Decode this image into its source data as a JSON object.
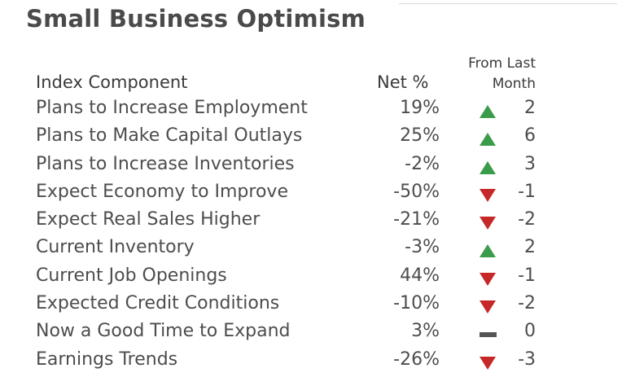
{
  "title": "Small Business Optimism",
  "headers": {
    "component": "Index Component",
    "net": "Net %",
    "from_line1": "From Last",
    "from_line2": "Month"
  },
  "colors": {
    "up": "#3a9b4a",
    "down": "#c62828",
    "flat": "#555555"
  },
  "rows": [
    {
      "label": "Plans to Increase Employment",
      "net": "19%",
      "direction": "up",
      "change": "2"
    },
    {
      "label": "Plans to Make Capital Outlays",
      "net": "25%",
      "direction": "up",
      "change": "6"
    },
    {
      "label": "Plans to Increase Inventories",
      "net": "-2%",
      "direction": "up",
      "change": "3"
    },
    {
      "label": "Expect Economy to Improve",
      "net": "-50%",
      "direction": "down",
      "change": "-1"
    },
    {
      "label": "Expect Real Sales Higher",
      "net": "-21%",
      "direction": "down",
      "change": "-2"
    },
    {
      "label": "Current Inventory",
      "net": "-3%",
      "direction": "up",
      "change": "2"
    },
    {
      "label": "Current Job Openings",
      "net": "44%",
      "direction": "down",
      "change": "-1"
    },
    {
      "label": "Expected Credit Conditions",
      "net": "-10%",
      "direction": "down",
      "change": "-2"
    },
    {
      "label": "Now a Good Time to Expand",
      "net": "3%",
      "direction": "flat",
      "change": "0"
    },
    {
      "label": "Earnings Trends",
      "net": "-26%",
      "direction": "down",
      "change": "-3"
    }
  ]
}
